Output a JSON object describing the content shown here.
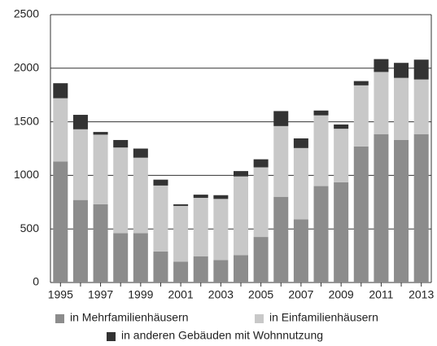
{
  "chart_data": {
    "type": "stacked_bar",
    "categories": [
      "1995",
      null,
      "1997",
      null,
      "1999",
      null,
      "2001",
      null,
      "2003",
      null,
      "2005",
      null,
      "2007",
      null,
      "2009",
      null,
      "2011",
      null,
      "2013"
    ],
    "series": [
      {
        "name": "in Mehrfamilienhäusern",
        "color": "#8c8c8c",
        "values": [
          1130,
          770,
          730,
          460,
          460,
          290,
          195,
          245,
          210,
          255,
          425,
          800,
          590,
          900,
          935,
          1270,
          1385,
          1330,
          1385
        ]
      },
      {
        "name": "in Einfamilienhäusern",
        "color": "#c8c8c8",
        "values": [
          590,
          660,
          650,
          800,
          705,
          615,
          520,
          545,
          570,
          735,
          650,
          660,
          665,
          660,
          500,
          570,
          580,
          580,
          510
        ]
      },
      {
        "name": "in anderen Gebäuden mit Wohnnutzung",
        "color": "#333333",
        "values": [
          140,
          135,
          25,
          70,
          85,
          55,
          15,
          30,
          35,
          50,
          75,
          140,
          90,
          45,
          40,
          40,
          120,
          140,
          185
        ]
      }
    ],
    "ylim": [
      0,
      2500
    ],
    "yticks": [
      0,
      500,
      1000,
      1500,
      2000,
      2500
    ],
    "grid": true
  }
}
